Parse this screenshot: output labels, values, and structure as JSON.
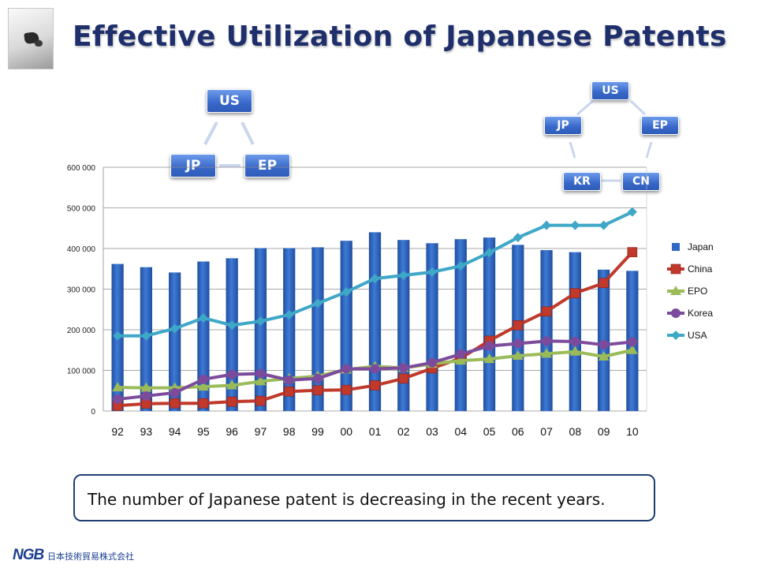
{
  "title": "Effective Utilization of Japanese Patents",
  "note": "The number of Japanese patent is decreasing  in the recent years.",
  "footer": {
    "logo_text": "NGB",
    "company": "日本技術貿易株式会社"
  },
  "diagram_left": {
    "nodes": [
      "US",
      "JP",
      "EP"
    ]
  },
  "diagram_right": {
    "nodes": [
      "US",
      "JP",
      "EP",
      "KR",
      "CN"
    ]
  },
  "chart_data": {
    "type": "bar",
    "categories": [
      "92",
      "93",
      "94",
      "95",
      "96",
      "97",
      "98",
      "99",
      "00",
      "01",
      "02",
      "03",
      "04",
      "05",
      "06",
      "07",
      "08",
      "09",
      "10"
    ],
    "ylim": [
      0,
      600000
    ],
    "yticks": [
      0,
      100000,
      200000,
      300000,
      400000,
      500000,
      600000
    ],
    "ytick_labels": [
      "0",
      "100 000",
      "200 000",
      "300 000",
      "400 000",
      "500 000",
      "600 000"
    ],
    "grid": true,
    "legend_position": "right",
    "series": [
      {
        "name": "Japan",
        "kind": "bar",
        "marker": "bar",
        "color": "#2f67c4",
        "values": [
          362000,
          354000,
          341000,
          368000,
          376000,
          401000,
          401000,
          403000,
          419000,
          440000,
          421000,
          413000,
          423000,
          427000,
          409000,
          396000,
          391000,
          348000,
          345000
        ]
      },
      {
        "name": "China",
        "kind": "line",
        "marker": "square",
        "color": "#c0392b",
        "values": [
          13000,
          18000,
          19000,
          19000,
          23000,
          25000,
          48000,
          51000,
          52000,
          63000,
          80000,
          105000,
          130000,
          173000,
          211000,
          245000,
          290000,
          315000,
          391000
        ]
      },
      {
        "name": "EPO",
        "kind": "line",
        "marker": "triangle",
        "color": "#9bbb59",
        "values": [
          58000,
          57000,
          57000,
          60000,
          63000,
          73000,
          80000,
          86000,
          102000,
          110000,
          106000,
          116000,
          124000,
          128000,
          136000,
          141000,
          146000,
          134000,
          150000
        ]
      },
      {
        "name": "Korea",
        "kind": "line",
        "marker": "circle",
        "color": "#7d4b9c",
        "values": [
          29000,
          37000,
          45000,
          78000,
          90000,
          92000,
          76000,
          80000,
          104000,
          104000,
          106000,
          119000,
          140000,
          160000,
          166000,
          172000,
          171000,
          163000,
          170000
        ]
      },
      {
        "name": "USA",
        "kind": "line",
        "marker": "diamond",
        "color": "#3fa7c7",
        "values": [
          185000,
          185000,
          203000,
          229000,
          211000,
          221000,
          237000,
          265000,
          293000,
          326000,
          334000,
          342000,
          357000,
          390000,
          427000,
          457000,
          457000,
          457000,
          490000
        ]
      }
    ]
  }
}
